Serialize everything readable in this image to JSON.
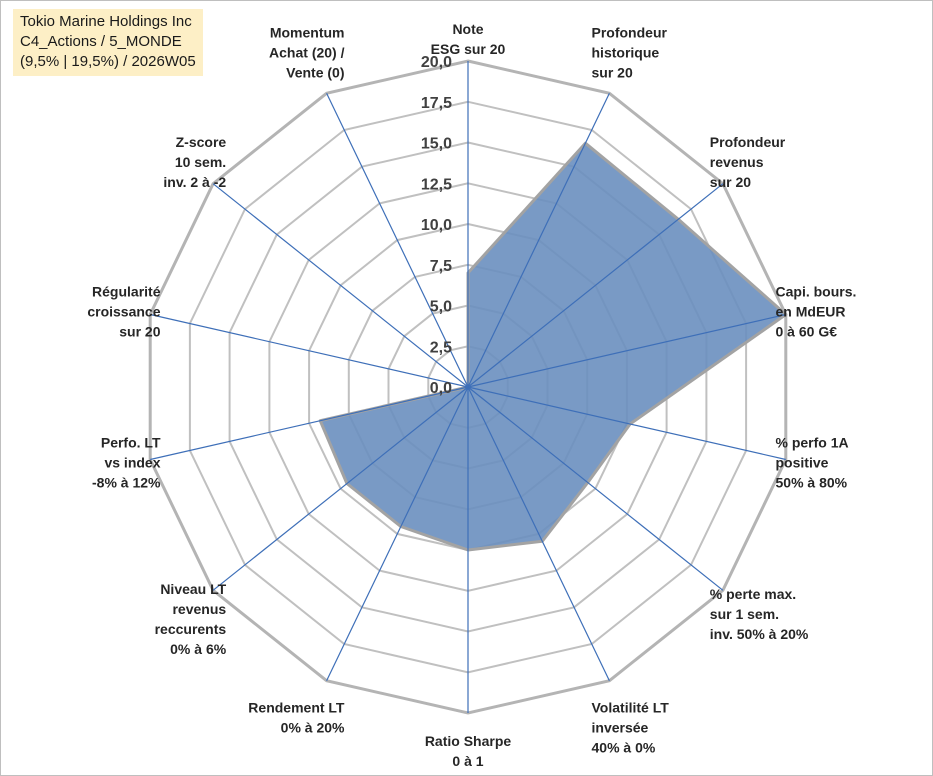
{
  "title": {
    "lines": [
      "Tokio Marine Holdings Inc",
      "C4_Actions / 5_MONDE",
      "(9,5% | 19,5%) / 2026W05"
    ]
  },
  "chart_data": {
    "type": "radar",
    "title": "Tokio Marine Holdings Inc",
    "r_range": [
      0,
      20
    ],
    "r_ticks": [
      "0,0",
      "2,5",
      "5,0",
      "7,5",
      "10,0",
      "12,5",
      "15,0",
      "17,5",
      "20,0"
    ],
    "axes": [
      {
        "lines": [
          "Note",
          "ESG sur 20"
        ]
      },
      {
        "lines": [
          "Profondeur",
          "historique",
          "sur 20"
        ]
      },
      {
        "lines": [
          "Profondeur",
          "revenus",
          "sur 20"
        ]
      },
      {
        "lines": [
          "Capi. bours.",
          "en MdEUR",
          "0 à 60 G€"
        ]
      },
      {
        "lines": [
          "% perfo 1A",
          "positive",
          "50% à 80%"
        ]
      },
      {
        "lines": [
          "% perte max.",
          "sur 1 sem.",
          "inv. 50% à 20%"
        ]
      },
      {
        "lines": [
          "Volatilité LT",
          "inversée",
          "40% à 0%"
        ]
      },
      {
        "lines": [
          "Ratio Sharpe",
          "0 à 1"
        ]
      },
      {
        "lines": [
          "Rendement LT",
          "0% à 20%"
        ]
      },
      {
        "lines": [
          "Niveau LT",
          "revenus",
          "reccurents",
          "0% à 6%"
        ]
      },
      {
        "lines": [
          "Perfo. LT",
          "vs index",
          "-8% à 12%"
        ]
      },
      {
        "lines": [
          "Régularité",
          "croissance",
          "sur 20"
        ]
      },
      {
        "lines": [
          "Z-score",
          "10 sem.",
          "inv. 2 à -2"
        ]
      },
      {
        "lines": [
          "Momentum",
          "Achat (20) /",
          "Vente (0)"
        ]
      }
    ],
    "series": [
      {
        "name": "Tokio Marine Holdings Inc",
        "color": "#6a8fbf",
        "values": [
          7,
          16.6,
          16.5,
          20,
          10.2,
          9.4,
          10.5,
          10,
          9.5,
          9.5,
          9.3,
          0,
          0,
          0
        ]
      }
    ],
    "grid_color": "#c0c0c0",
    "spoke_color": "#3e6fb8"
  }
}
